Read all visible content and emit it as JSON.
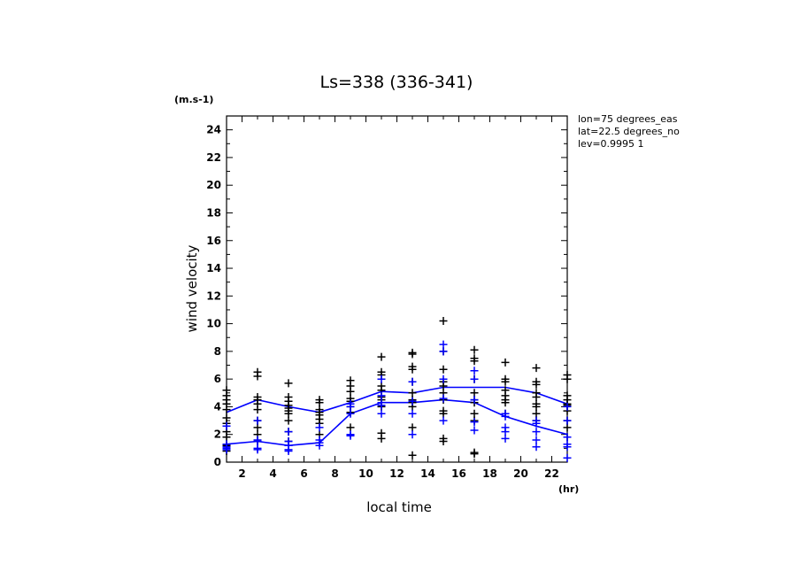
{
  "chart_data": {
    "type": "scatter",
    "title": "Ls=338 (336-341)",
    "xlabel": "local time",
    "ylabel": "wind velocity",
    "xunit": "(hr)",
    "yunit": "(m.s-1)",
    "xlim": [
      1,
      23
    ],
    "ylim": [
      0,
      25
    ],
    "xticks": [
      2,
      4,
      6,
      8,
      10,
      12,
      14,
      16,
      18,
      20,
      22
    ],
    "yticks": [
      0,
      2,
      4,
      6,
      8,
      10,
      12,
      14,
      16,
      18,
      20,
      22,
      24
    ],
    "grid": false,
    "info": [
      "lon=75 degrees_eas",
      "lat=22.5 degrees_no",
      "lev=0.9995 1"
    ],
    "colors": {
      "black": "#000000",
      "blue": "#0000ff"
    },
    "series": [
      {
        "color": "#000000",
        "marker": "plus",
        "points": [
          [
            1,
            5.2
          ],
          [
            1,
            4.8
          ],
          [
            1,
            4.5
          ],
          [
            1,
            4.2
          ],
          [
            1,
            3.8
          ],
          [
            1,
            3.2
          ],
          [
            1,
            2.8
          ],
          [
            1,
            2.2
          ],
          [
            1,
            1.8
          ],
          [
            1,
            1.2
          ],
          [
            1,
            0.8
          ],
          [
            3,
            6.5
          ],
          [
            3,
            6.2
          ],
          [
            3,
            4.7
          ],
          [
            3,
            4.5
          ],
          [
            3,
            4.2
          ],
          [
            3,
            3.8
          ],
          [
            3,
            3.0
          ],
          [
            3,
            2.5
          ],
          [
            3,
            2.0
          ],
          [
            3,
            1.5
          ],
          [
            5,
            5.7
          ],
          [
            5,
            4.7
          ],
          [
            5,
            4.4
          ],
          [
            5,
            4.1
          ],
          [
            5,
            3.9
          ],
          [
            5,
            3.7
          ],
          [
            5,
            3.5
          ],
          [
            5,
            3.0
          ],
          [
            5,
            2.2
          ],
          [
            5,
            1.5
          ],
          [
            7,
            4.5
          ],
          [
            7,
            4.3
          ],
          [
            7,
            3.8
          ],
          [
            7,
            3.6
          ],
          [
            7,
            3.4
          ],
          [
            7,
            3.1
          ],
          [
            7,
            2.8
          ],
          [
            7,
            2.0
          ],
          [
            9,
            5.9
          ],
          [
            9,
            5.5
          ],
          [
            9,
            5.1
          ],
          [
            9,
            4.6
          ],
          [
            9,
            4.4
          ],
          [
            9,
            4.0
          ],
          [
            9,
            3.6
          ],
          [
            9,
            2.5
          ],
          [
            11,
            7.6
          ],
          [
            11,
            6.5
          ],
          [
            11,
            6.3
          ],
          [
            11,
            5.5
          ],
          [
            11,
            5.2
          ],
          [
            11,
            4.7
          ],
          [
            11,
            4.5
          ],
          [
            11,
            4.3
          ],
          [
            11,
            4.0
          ],
          [
            11,
            2.1
          ],
          [
            11,
            1.7
          ],
          [
            13,
            7.9
          ],
          [
            13,
            7.8
          ],
          [
            13,
            6.9
          ],
          [
            13,
            6.7
          ],
          [
            13,
            5.8
          ],
          [
            13,
            5.0
          ],
          [
            13,
            4.5
          ],
          [
            13,
            4.3
          ],
          [
            13,
            4.0
          ],
          [
            13,
            2.5
          ],
          [
            13,
            0.5
          ],
          [
            15,
            10.2
          ],
          [
            15,
            8.0
          ],
          [
            15,
            6.7
          ],
          [
            15,
            5.8
          ],
          [
            15,
            5.5
          ],
          [
            15,
            5.0
          ],
          [
            15,
            4.5
          ],
          [
            15,
            3.7
          ],
          [
            15,
            3.5
          ],
          [
            15,
            1.7
          ],
          [
            15,
            1.5
          ],
          [
            17,
            8.1
          ],
          [
            17,
            7.5
          ],
          [
            17,
            7.3
          ],
          [
            17,
            6.0
          ],
          [
            17,
            5.0
          ],
          [
            17,
            4.5
          ],
          [
            17,
            4.3
          ],
          [
            17,
            3.5
          ],
          [
            17,
            3.0
          ],
          [
            17,
            0.7
          ],
          [
            17,
            0.6
          ],
          [
            19,
            7.2
          ],
          [
            19,
            6.0
          ],
          [
            19,
            5.8
          ],
          [
            19,
            5.2
          ],
          [
            19,
            4.8
          ],
          [
            19,
            4.5
          ],
          [
            19,
            4.3
          ],
          [
            19,
            3.5
          ],
          [
            21,
            6.8
          ],
          [
            21,
            5.8
          ],
          [
            21,
            5.6
          ],
          [
            21,
            5.0
          ],
          [
            21,
            4.7
          ],
          [
            21,
            4.2
          ],
          [
            21,
            4.0
          ],
          [
            21,
            3.5
          ],
          [
            21,
            3.0
          ],
          [
            23,
            6.3
          ],
          [
            23,
            6.0
          ],
          [
            23,
            4.8
          ],
          [
            23,
            4.5
          ],
          [
            23,
            4.2
          ],
          [
            23,
            4.1
          ],
          [
            23,
            3.7
          ],
          [
            23,
            3.0
          ],
          [
            23,
            2.5
          ],
          [
            23,
            1.8
          ]
        ]
      },
      {
        "color": "#0000ff",
        "marker": "plus",
        "points": [
          [
            1,
            2.6
          ],
          [
            1,
            1.3
          ],
          [
            1,
            1.1
          ],
          [
            1,
            1.0
          ],
          [
            1,
            0.9
          ],
          [
            3,
            3.0
          ],
          [
            3,
            1.6
          ],
          [
            3,
            1.5
          ],
          [
            3,
            1.0
          ],
          [
            3,
            0.9
          ],
          [
            5,
            2.2
          ],
          [
            5,
            1.5
          ],
          [
            5,
            1.2
          ],
          [
            5,
            0.9
          ],
          [
            5,
            0.8
          ],
          [
            7,
            2.5
          ],
          [
            7,
            1.6
          ],
          [
            7,
            1.4
          ],
          [
            7,
            1.2
          ],
          [
            9,
            4.2
          ],
          [
            9,
            4.0
          ],
          [
            9,
            3.5
          ],
          [
            9,
            2.0
          ],
          [
            9,
            1.9
          ],
          [
            11,
            6.0
          ],
          [
            11,
            4.8
          ],
          [
            11,
            4.3
          ],
          [
            11,
            4.1
          ],
          [
            11,
            3.5
          ],
          [
            13,
            5.8
          ],
          [
            13,
            4.4
          ],
          [
            13,
            3.5
          ],
          [
            13,
            2.0
          ],
          [
            15,
            8.5
          ],
          [
            15,
            8.0
          ],
          [
            15,
            6.0
          ],
          [
            15,
            4.6
          ],
          [
            15,
            3.0
          ],
          [
            17,
            6.6
          ],
          [
            17,
            6.0
          ],
          [
            17,
            4.5
          ],
          [
            17,
            2.9
          ],
          [
            17,
            2.3
          ],
          [
            19,
            3.5
          ],
          [
            19,
            3.3
          ],
          [
            19,
            2.5
          ],
          [
            19,
            2.2
          ],
          [
            19,
            1.7
          ],
          [
            21,
            3.0
          ],
          [
            21,
            2.8
          ],
          [
            21,
            2.2
          ],
          [
            21,
            1.6
          ],
          [
            21,
            1.1
          ],
          [
            23,
            4.0
          ],
          [
            23,
            3.0
          ],
          [
            23,
            1.8
          ],
          [
            23,
            1.3
          ],
          [
            23,
            1.1
          ],
          [
            23,
            0.3
          ]
        ]
      }
    ],
    "lines": [
      {
        "color": "#0000ff",
        "x": [
          1,
          3,
          5,
          7,
          9,
          11,
          13,
          15,
          17,
          19,
          21,
          23
        ],
        "y": [
          3.6,
          4.5,
          4.0,
          3.6,
          4.3,
          5.1,
          5.0,
          5.4,
          5.4,
          5.4,
          5.0,
          4.2
        ]
      },
      {
        "color": "#0000ff",
        "x": [
          1,
          3,
          5,
          7,
          9,
          11,
          13,
          15,
          17,
          19,
          21,
          23
        ],
        "y": [
          1.3,
          1.5,
          1.2,
          1.4,
          3.5,
          4.3,
          4.3,
          4.5,
          4.3,
          3.3,
          2.6,
          2.0
        ]
      }
    ]
  }
}
